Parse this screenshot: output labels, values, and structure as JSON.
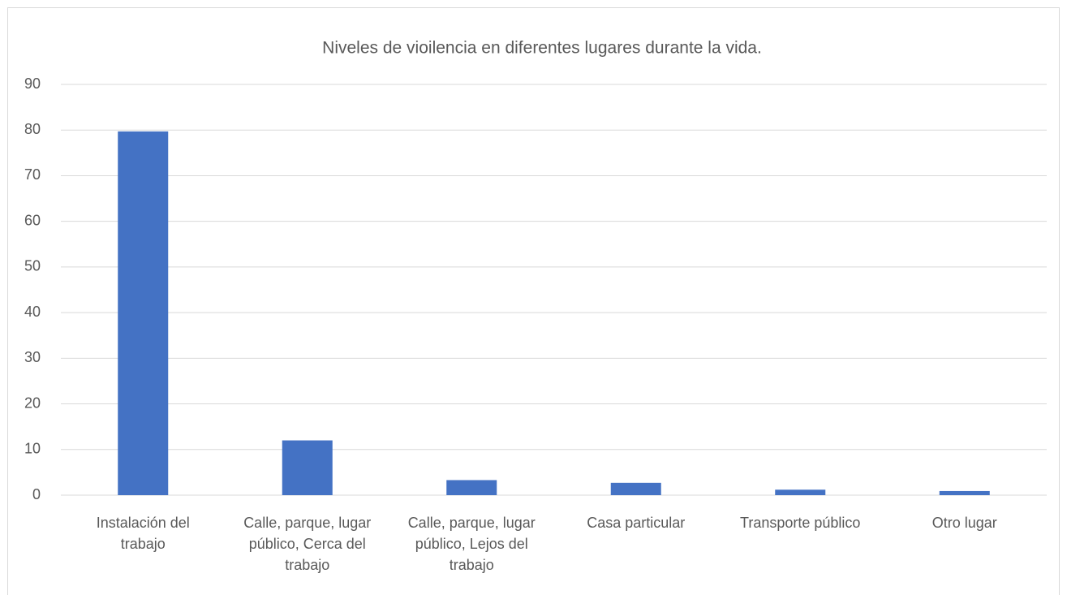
{
  "chart_data": {
    "type": "bar",
    "title": "Niveles de vioilencia en diferentes lugares durante la vida.",
    "categories": [
      "Instalación del trabajo",
      "Calle, parque, lugar público, Cerca del trabajo",
      "Calle, parque, lugar público, Lejos del trabajo",
      "Casa particular",
      "Transporte público",
      "Otro lugar"
    ],
    "values": [
      79.7,
      12,
      3.3,
      2.7,
      1.2,
      0.9
    ],
    "color": "#4472c4",
    "ylim": [
      0,
      90
    ],
    "yticks": [
      0,
      10,
      20,
      30,
      40,
      50,
      60,
      70,
      80,
      90
    ],
    "grid": true
  }
}
